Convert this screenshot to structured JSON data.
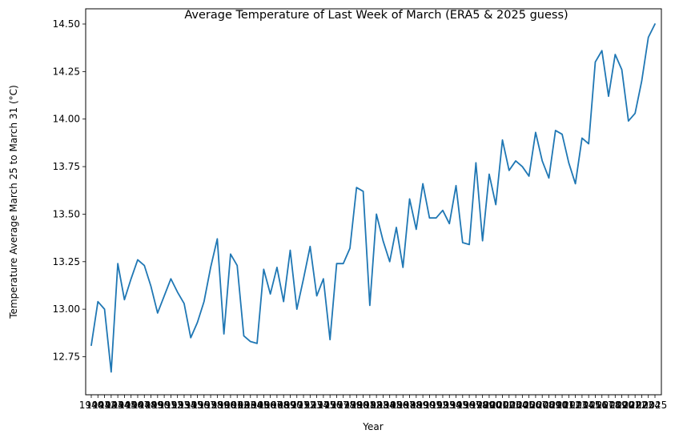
{
  "chart_data": {
    "type": "line",
    "title": "Average Temperature of Last Week of March (ERA5 & 2025 guess)",
    "xlabel": "Year",
    "ylabel": "Temperature Average March 25 to March 31 (°C)",
    "x": [
      "1940",
      "1941",
      "1942",
      "1943",
      "1944",
      "1945",
      "1946",
      "1947",
      "1948",
      "1949",
      "1950",
      "1951",
      "1952",
      "1953",
      "1954",
      "1955",
      "1956",
      "1957",
      "1958",
      "1959",
      "1960",
      "1961",
      "1962",
      "1963",
      "1964",
      "1965",
      "1966",
      "1967",
      "1968",
      "1969",
      "1970",
      "1971",
      "1972",
      "1973",
      "1974",
      "1975",
      "1976",
      "1977",
      "1978",
      "1979",
      "1980",
      "1981",
      "1982",
      "1983",
      "1984",
      "1985",
      "1986",
      "1987",
      "1988",
      "1989",
      "1990",
      "1991",
      "1992",
      "1993",
      "1994",
      "1995",
      "1996",
      "1997",
      "1998",
      "1999",
      "2000",
      "2001",
      "2002",
      "2003",
      "2004",
      "2005",
      "2006",
      "2007",
      "2008",
      "2009",
      "2010",
      "2011",
      "2012",
      "2013",
      "2014",
      "2015",
      "2016",
      "2017",
      "2018",
      "2019",
      "2020",
      "2021",
      "2022",
      "2023",
      "2024",
      "2025"
    ],
    "series": [
      {
        "values": [
          12.81,
          13.04,
          13.0,
          12.67,
          13.24,
          13.05,
          13.16,
          13.26,
          13.23,
          13.12,
          12.98,
          13.07,
          13.16,
          13.09,
          13.03,
          12.85,
          12.93,
          13.04,
          13.22,
          13.37,
          12.87,
          13.29,
          13.23,
          12.86,
          12.83,
          12.82,
          13.21,
          13.08,
          13.22,
          13.04,
          13.31,
          13.0,
          13.16,
          13.33,
          13.07,
          13.16,
          12.84,
          13.24,
          13.24,
          13.32,
          13.64,
          13.62,
          13.02,
          13.5,
          13.36,
          13.25,
          13.43,
          13.22,
          13.58,
          13.42,
          13.66,
          13.48,
          13.48,
          13.52,
          13.45,
          13.65,
          13.35,
          13.34,
          13.77,
          13.36,
          13.71,
          13.55,
          13.89,
          13.73,
          13.78,
          13.75,
          13.7,
          13.93,
          13.78,
          13.69,
          13.94,
          13.92,
          13.77,
          13.66,
          13.9,
          13.87,
          14.3,
          14.36,
          14.12,
          14.34,
          14.26,
          13.99,
          14.03,
          14.2,
          14.43,
          14.5
        ],
        "color": "#1f77b4"
      }
    ],
    "ylim": [
      12.55,
      14.58
    ],
    "yticks": [
      "12.75",
      "13.00",
      "13.25",
      "13.50",
      "13.75",
      "14.00",
      "14.25",
      "14.50"
    ],
    "grid": false,
    "legend": "none"
  }
}
